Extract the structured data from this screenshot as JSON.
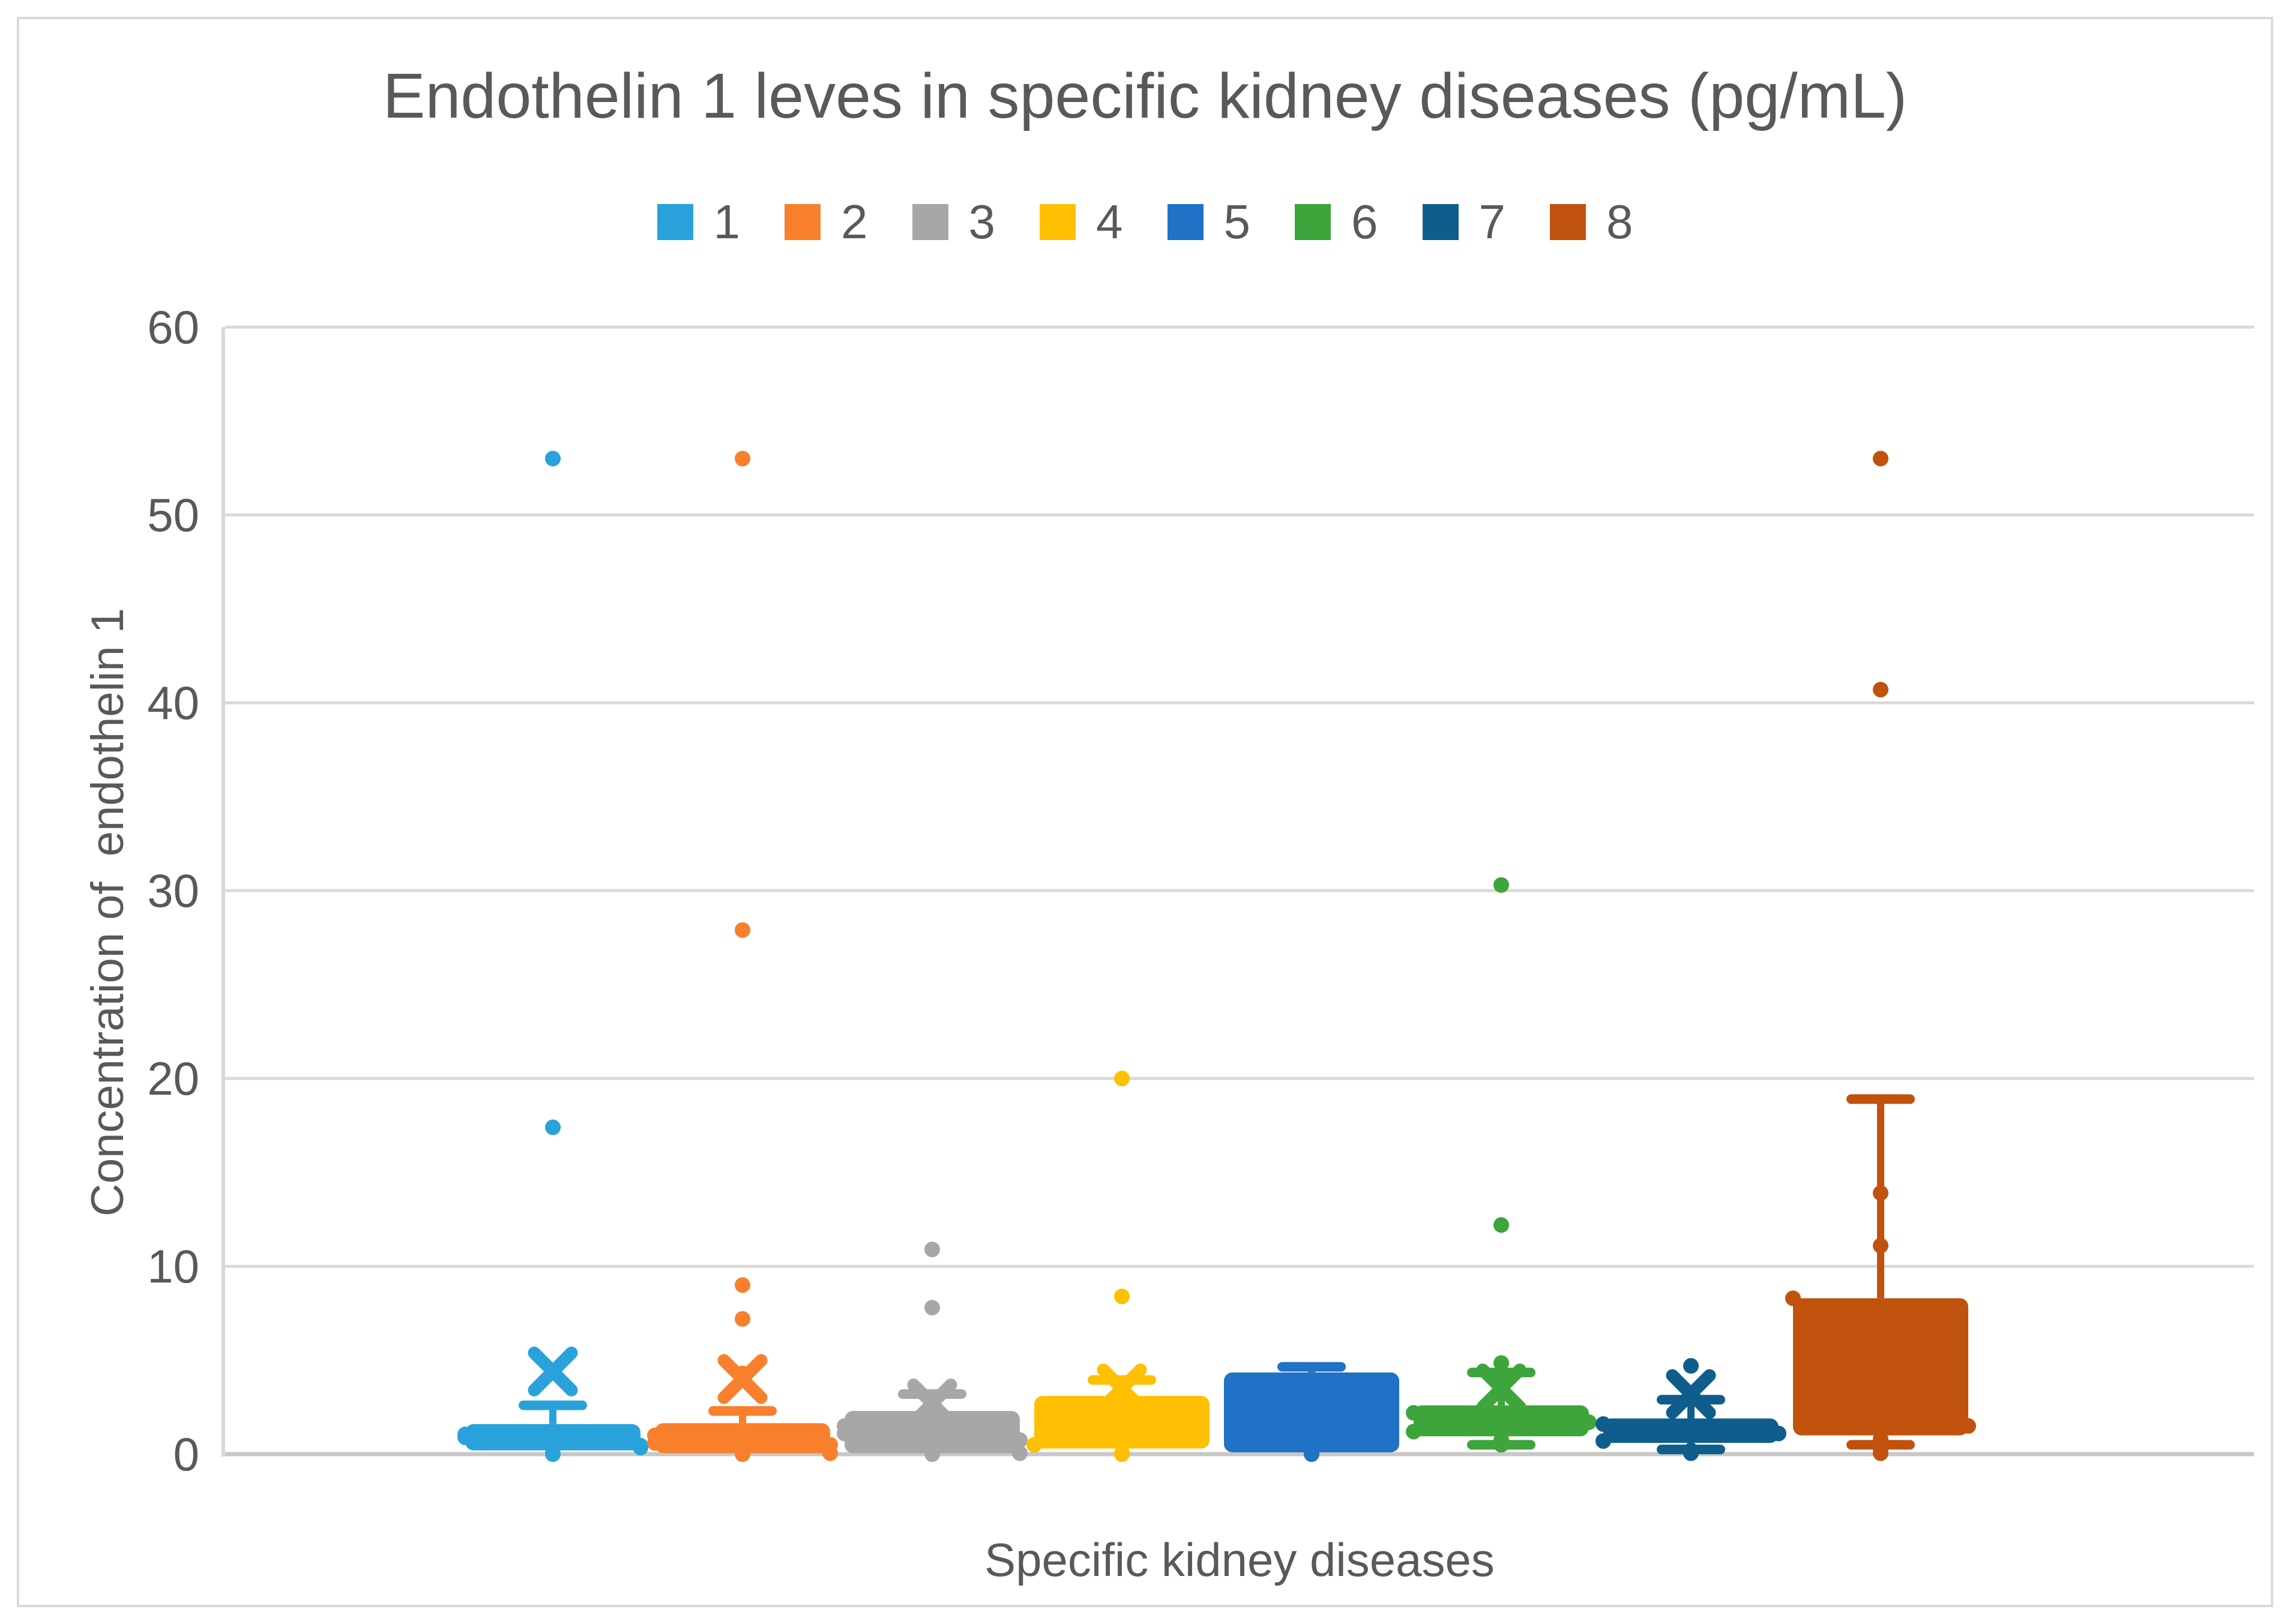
{
  "window": {
    "background": "#FFFFFF",
    "frame_border_color": "#D9D9D9",
    "text_color": "#595959"
  },
  "chart_data": {
    "type": "boxplot",
    "title": "Endothelin 1 leves in specific kidney diseases (pg/mL)",
    "xlabel": "Specific kidney diseases",
    "ylabel": "Concentration of  endothelin 1",
    "ylim": [
      0,
      60
    ],
    "yticks": [
      0,
      10,
      20,
      30,
      40,
      50,
      60
    ],
    "grid": true,
    "gridline_color": "#D9D9D9",
    "zero_line_color": "#C9C7C7",
    "axis_line_color": "#D9D9D9",
    "legend_position": "top",
    "legend_labels": [
      "1",
      "2",
      "3",
      "4",
      "5",
      "6",
      "7",
      "8"
    ],
    "series": [
      {
        "name": "1",
        "color": "#29A2DC",
        "q1": 0.2,
        "q3": 1.6,
        "whisker_low": 0.2,
        "whisker_high": 2.6,
        "mean": 4.4,
        "outliers": [
          17.4,
          53
        ],
        "inner_points": [
          1.05,
          0.45,
          0.9,
          0.35,
          0.05,
          0
        ]
      },
      {
        "name": "2",
        "color": "#F8802D",
        "q1": 0.05,
        "q3": 1.65,
        "whisker_low": 0.05,
        "whisker_high": 2.3,
        "mean": 4.0,
        "outliers": [
          4.3,
          7.2,
          9.0,
          27.9,
          53
        ],
        "inner_points": [
          1.0,
          0.5,
          0.6,
          0.05,
          0
        ]
      },
      {
        "name": "3",
        "color": "#A7A7A7",
        "q1": 0.05,
        "q3": 2.3,
        "whisker_low": 0.05,
        "whisker_high": 3.2,
        "mean": 2.7,
        "outliers": [
          7.8,
          10.9
        ],
        "inner_points": [
          1.5,
          0.75,
          1.1,
          0.05,
          0
        ]
      },
      {
        "name": "4",
        "color": "#FFC003",
        "q1": 0.3,
        "q3": 3.1,
        "whisker_low": 0.3,
        "whisker_high": 3.95,
        "mean": 3.5,
        "outliers": [
          8.4,
          20
        ],
        "inner_points": [
          0.5,
          0.05,
          0
        ]
      },
      {
        "name": "5",
        "color": "#1F72C5",
        "q1": 0.1,
        "q3": 4.35,
        "whisker_low": 0.1,
        "whisker_high": 4.65,
        "mean": null,
        "outliers": [],
        "inner_points": [
          0.05,
          0
        ]
      },
      {
        "name": "6",
        "color": "#3EA43C",
        "q1": 0.95,
        "q3": 2.6,
        "whisker_low": 0.5,
        "whisker_high": 4.35,
        "mean": 3.5,
        "outliers": [
          4.85,
          12.2,
          30.3
        ],
        "inner_points": [
          2.2,
          1.7,
          1.2,
          0.75,
          0.5
        ]
      },
      {
        "name": "7",
        "color": "#0F5D8C",
        "q1": 0.6,
        "q3": 1.9,
        "whisker_low": 0.25,
        "whisker_high": 2.9,
        "mean": 3.2,
        "outliers": [
          4.7
        ],
        "inner_points": [
          1.6,
          1.1,
          0.7,
          0.2,
          0.05
        ]
      },
      {
        "name": "8",
        "color": "#C1520E",
        "q1": 1.0,
        "q3": 8.3,
        "whisker_low": 0.5,
        "whisker_high": 18.9,
        "mean": null,
        "outliers": [
          11.1,
          13.9,
          40.7,
          53
        ],
        "inner_points": [
          8.3,
          1.5,
          0.8,
          0.3,
          0.05
        ]
      }
    ]
  }
}
